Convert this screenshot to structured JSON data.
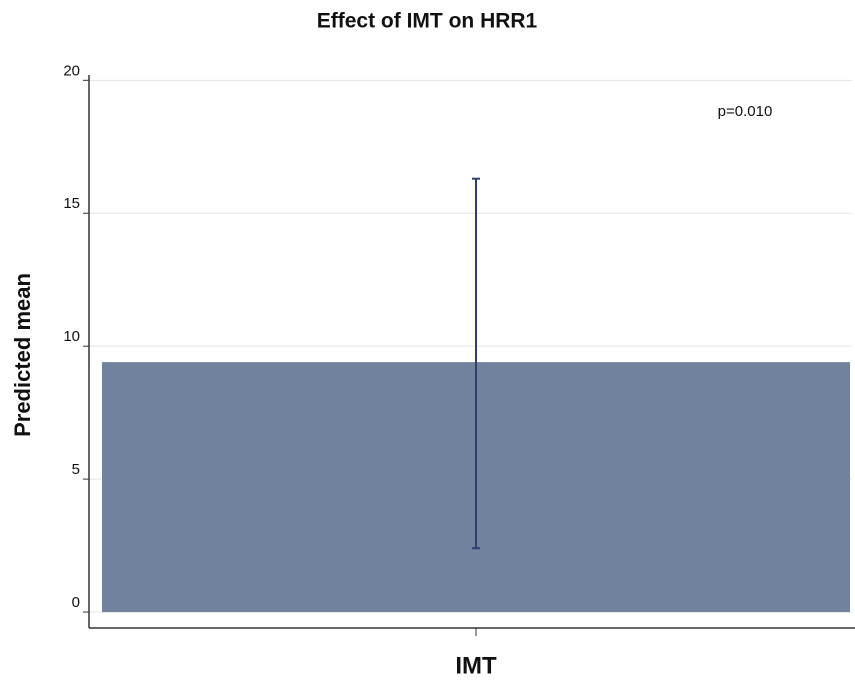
{
  "chart_data": {
    "type": "bar",
    "title": "Effect of IMT on HRR1",
    "ylabel": "Predicted mean",
    "xlabel": "IMT",
    "annotation": "p=0.010",
    "categories": [
      "IMT"
    ],
    "values": [
      9.4
    ],
    "error_low": [
      2.4
    ],
    "error_high": [
      16.3
    ],
    "color": "#71829e",
    "error_color": "#2f3f6f",
    "ylim": [
      -0.6,
      20.2
    ],
    "yticks": [
      0,
      5,
      10,
      15,
      20
    ],
    "grid": true
  }
}
